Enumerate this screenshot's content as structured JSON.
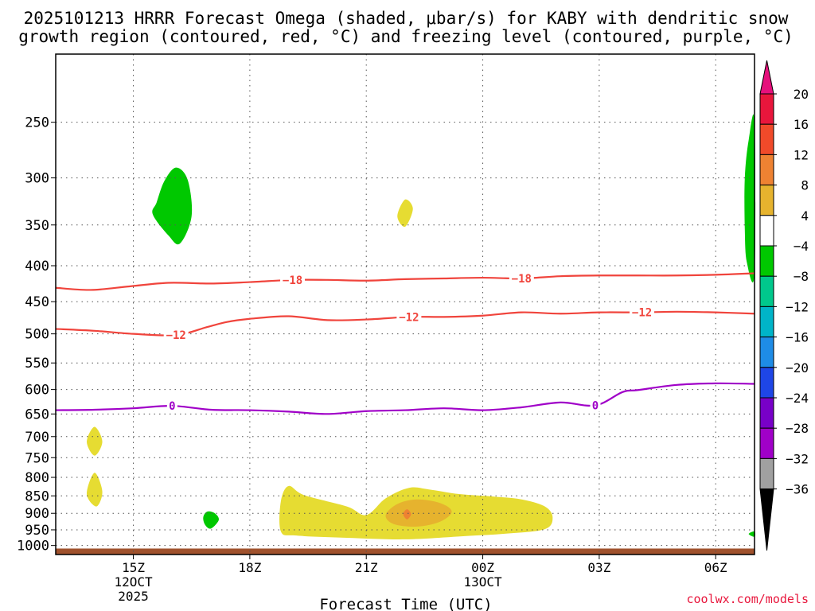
{
  "chart_data": {
    "type": "contour",
    "title_line1": "2025101213 HRRR Forecast Omega (shaded, μbar/s) for KABY with dendritic snow",
    "title_line2": "growth region (contoured, red, °C) and freezing level (contoured, purple, °C)",
    "xlabel": "Forecast Time (UTC)",
    "watermark": "coolwx.com/models",
    "x_range_hours": [
      13.0,
      31.0
    ],
    "x_ticks": [
      {
        "hour": 15,
        "label": "15Z",
        "sub1": "12OCT",
        "sub2": "2025"
      },
      {
        "hour": 18,
        "label": "18Z",
        "sub1": "",
        "sub2": ""
      },
      {
        "hour": 21,
        "label": "21Z",
        "sub1": "",
        "sub2": ""
      },
      {
        "hour": 24,
        "label": "00Z",
        "sub1": "13OCT",
        "sub2": ""
      },
      {
        "hour": 27,
        "label": "03Z",
        "sub1": "",
        "sub2": ""
      },
      {
        "hour": 30,
        "label": "06Z",
        "sub1": "",
        "sub2": ""
      }
    ],
    "y_range_hpa": [
      200,
      1030
    ],
    "y_ticks": [
      250,
      300,
      350,
      400,
      450,
      500,
      550,
      600,
      650,
      700,
      750,
      800,
      850,
      900,
      950,
      1000
    ],
    "colorbar": {
      "labels": [
        "20",
        "16",
        "12",
        "8",
        "4",
        "−4",
        "−8",
        "−12",
        "−16",
        "−20",
        "−24",
        "−28",
        "−32",
        "−36"
      ],
      "colors": [
        "#e8163c",
        "#f04a2a",
        "#ee8232",
        "#e6b32e",
        "#e6dc32",
        "#ffffff",
        "#00c800",
        "#00c88c",
        "#00b4c8",
        "#1e8ce6",
        "#1e46e6",
        "#7800c8",
        "#a000c8",
        "#a0a0a0"
      ],
      "top_arrow_color": "#e6107c",
      "bottom_arrow_color": "#000000"
    },
    "contours": [
      {
        "name": "-18",
        "label": "−18",
        "color": "#f0443c",
        "label_at_hours": [
          19.1,
          25.0
        ],
        "points": [
          [
            13.0,
            430
          ],
          [
            13.9,
            433
          ],
          [
            14.9,
            428
          ],
          [
            15.9,
            423
          ],
          [
            17.0,
            424
          ],
          [
            18.0,
            422
          ],
          [
            19.1,
            419
          ],
          [
            20.0,
            419
          ],
          [
            21.0,
            420
          ],
          [
            22.0,
            418
          ],
          [
            23.0,
            417
          ],
          [
            24.0,
            416
          ],
          [
            25.0,
            417
          ],
          [
            26.0,
            414
          ],
          [
            27.0,
            413
          ],
          [
            28.0,
            413
          ],
          [
            29.0,
            413
          ],
          [
            30.0,
            412
          ],
          [
            31.0,
            410
          ]
        ]
      },
      {
        "name": "-12",
        "label": "−12",
        "color": "#f0443c",
        "label_at_hours": [
          16.1,
          22.1,
          28.1
        ],
        "points": [
          [
            13.0,
            492
          ],
          [
            14.0,
            495
          ],
          [
            15.0,
            500
          ],
          [
            16.1,
            502
          ],
          [
            16.9,
            489
          ],
          [
            17.4,
            481
          ],
          [
            18.0,
            476
          ],
          [
            19.0,
            472
          ],
          [
            20.0,
            478
          ],
          [
            21.0,
            477
          ],
          [
            22.1,
            473
          ],
          [
            23.0,
            473
          ],
          [
            24.0,
            471
          ],
          [
            25.0,
            466
          ],
          [
            26.0,
            468
          ],
          [
            27.0,
            466
          ],
          [
            28.1,
            466
          ],
          [
            29.0,
            465
          ],
          [
            30.0,
            466
          ],
          [
            31.0,
            468
          ]
        ]
      },
      {
        "name": "0",
        "label": "0",
        "color": "#a000c8",
        "label_at_hours": [
          16.0,
          26.9
        ],
        "points": [
          [
            13.0,
            642
          ],
          [
            14.0,
            641
          ],
          [
            15.0,
            638
          ],
          [
            16.0,
            633
          ],
          [
            17.0,
            641
          ],
          [
            18.0,
            642
          ],
          [
            19.0,
            645
          ],
          [
            20.0,
            650
          ],
          [
            21.0,
            644
          ],
          [
            22.0,
            642
          ],
          [
            23.0,
            638
          ],
          [
            24.0,
            642
          ],
          [
            25.0,
            636
          ],
          [
            26.0,
            626
          ],
          [
            26.9,
            632
          ],
          [
            27.6,
            605
          ],
          [
            28.0,
            601
          ],
          [
            29.0,
            591
          ],
          [
            30.0,
            588
          ],
          [
            31.0,
            589
          ]
        ]
      }
    ],
    "shaded_regions": [
      {
        "name": "omega-neg-upper-left",
        "value_range": "-4 to -8",
        "color": "#00c800",
        "points": [
          [
            15.6,
            325
          ],
          [
            15.8,
            303
          ],
          [
            16.1,
            290
          ],
          [
            16.4,
            302
          ],
          [
            16.5,
            340
          ],
          [
            16.2,
            372
          ],
          [
            15.9,
            362
          ],
          [
            15.5,
            338
          ]
        ]
      },
      {
        "name": "omega-pos-upper-mid",
        "value_range": "4 to 8",
        "color": "#e6dc32",
        "points": [
          [
            21.8,
            340
          ],
          [
            22.0,
            322
          ],
          [
            22.2,
            332
          ],
          [
            22.0,
            352
          ]
        ]
      },
      {
        "name": "omega-pos-left-700",
        "value_range": "4 to 8",
        "color": "#e6dc32",
        "points": [
          [
            13.8,
            712
          ],
          [
            14.0,
            678
          ],
          [
            14.2,
            712
          ],
          [
            14.0,
            745
          ]
        ]
      },
      {
        "name": "omega-pos-left-840",
        "value_range": "4 to 8",
        "color": "#e6dc32",
        "points": [
          [
            13.8,
            845
          ],
          [
            14.0,
            788
          ],
          [
            14.2,
            838
          ],
          [
            14.05,
            880
          ]
        ]
      },
      {
        "name": "omega-neg-low",
        "value_range": "-4 to -8",
        "color": "#00c800",
        "points": [
          [
            16.8,
            912
          ],
          [
            16.9,
            895
          ],
          [
            17.1,
            900
          ],
          [
            17.2,
            920
          ],
          [
            17.0,
            946
          ],
          [
            16.85,
            935
          ]
        ]
      },
      {
        "name": "omega-pos-low-band",
        "value_range": "4 to 8",
        "color": "#e6dc32",
        "points": [
          [
            18.8,
            955
          ],
          [
            18.8,
            865
          ],
          [
            19.0,
            823
          ],
          [
            19.4,
            848
          ],
          [
            20.5,
            880
          ],
          [
            21.0,
            905
          ],
          [
            21.5,
            857
          ],
          [
            22.1,
            828
          ],
          [
            22.6,
            832
          ],
          [
            23.4,
            845
          ],
          [
            24.3,
            852
          ],
          [
            25.0,
            860
          ],
          [
            25.6,
            880
          ],
          [
            25.8,
            912
          ],
          [
            25.6,
            948
          ],
          [
            24.6,
            962
          ],
          [
            23.5,
            970
          ],
          [
            22.0,
            980
          ],
          [
            20.5,
            975
          ],
          [
            19.2,
            968
          ]
        ]
      },
      {
        "name": "omega-pos-core",
        "value_range": "8 to 12",
        "color": "#e6b32e",
        "points": [
          [
            21.5,
            905
          ],
          [
            21.8,
            873
          ],
          [
            22.3,
            860
          ],
          [
            22.9,
            870
          ],
          [
            23.2,
            895
          ],
          [
            22.9,
            925
          ],
          [
            22.3,
            940
          ],
          [
            21.7,
            932
          ]
        ]
      },
      {
        "name": "omega-pos-max",
        "value_range": "12 to 16",
        "color": "#ee8232",
        "points": [
          [
            21.95,
            902
          ],
          [
            22.05,
            888
          ],
          [
            22.15,
            902
          ],
          [
            22.05,
            918
          ]
        ]
      },
      {
        "name": "omega-neg-right-edge",
        "value_range": "-4 to -8",
        "color": "#00c800",
        "points": [
          [
            31.0,
            250
          ],
          [
            30.85,
            265
          ],
          [
            30.75,
            300
          ],
          [
            30.75,
            355
          ],
          [
            30.8,
            395
          ],
          [
            31.0,
            410
          ]
        ]
      },
      {
        "name": "omega-neg-right-low",
        "value_range": "-4 to -8",
        "color": "#00c800",
        "points": [
          [
            31.0,
            955
          ],
          [
            30.85,
            963
          ],
          [
            31.0,
            972
          ]
        ]
      }
    ],
    "ground_color": "#a0522d",
    "ground_top_hpa": 1010
  }
}
